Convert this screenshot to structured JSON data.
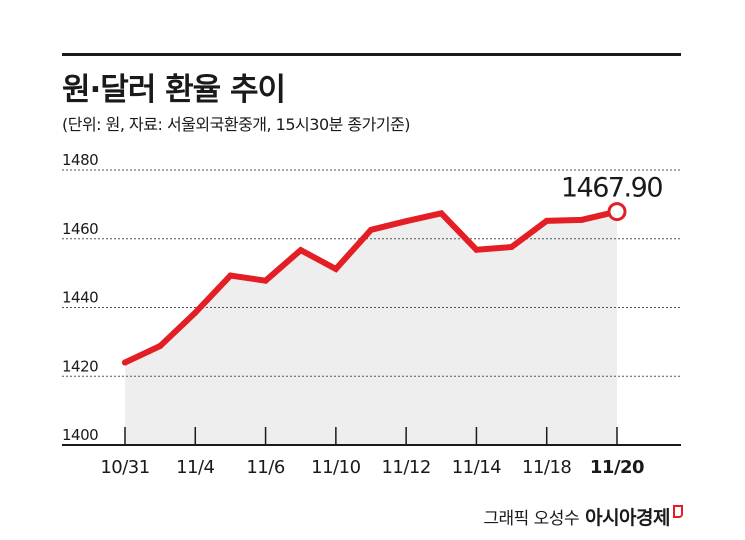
{
  "header": {
    "title": "원·달러 환율 추이",
    "subtitle": "(단위: 원, 자료: 서울외국환중개, 15시30분 종가기준)"
  },
  "footer": {
    "credit": "그래픽 오성수",
    "brand": "아시아경제"
  },
  "colors": {
    "line": "#e31e24",
    "area": "#eeeeee",
    "text": "#1a1a1a"
  },
  "chart_data": {
    "type": "area",
    "title": "원·달러 환율 추이",
    "ylim": [
      1400,
      1480
    ],
    "yticks": [
      1400,
      1420,
      1440,
      1460,
      1480
    ],
    "grid": true,
    "points": [
      {
        "x": "10/31",
        "y": 1424.0
      },
      {
        "x": "11/1",
        "y": 1428.8
      },
      {
        "x": "11/4",
        "y": 1438.5
      },
      {
        "x": "11/5",
        "y": 1449.3
      },
      {
        "x": "11/6",
        "y": 1447.8
      },
      {
        "x": "11/7",
        "y": 1456.7
      },
      {
        "x": "11/10",
        "y": 1451.2
      },
      {
        "x": "11/11",
        "y": 1462.6
      },
      {
        "x": "11/12",
        "y": 1465.1
      },
      {
        "x": "11/13",
        "y": 1467.4
      },
      {
        "x": "11/14",
        "y": 1456.8
      },
      {
        "x": "11/17",
        "y": 1457.6
      },
      {
        "x": "11/18",
        "y": 1465.2
      },
      {
        "x": "11/19",
        "y": 1465.5
      },
      {
        "x": "11/20",
        "y": 1467.9
      }
    ],
    "xticklabels": [
      {
        "index": 0,
        "label": "10/31"
      },
      {
        "index": 2,
        "label": "11/4"
      },
      {
        "index": 4,
        "label": "11/6"
      },
      {
        "index": 6,
        "label": "11/10"
      },
      {
        "index": 8,
        "label": "11/12"
      },
      {
        "index": 10,
        "label": "11/14"
      },
      {
        "index": 12,
        "label": "11/18"
      },
      {
        "index": 14,
        "label": "11/20",
        "bold": true
      }
    ],
    "annotation": {
      "index": 14,
      "text": "1467.90"
    }
  }
}
